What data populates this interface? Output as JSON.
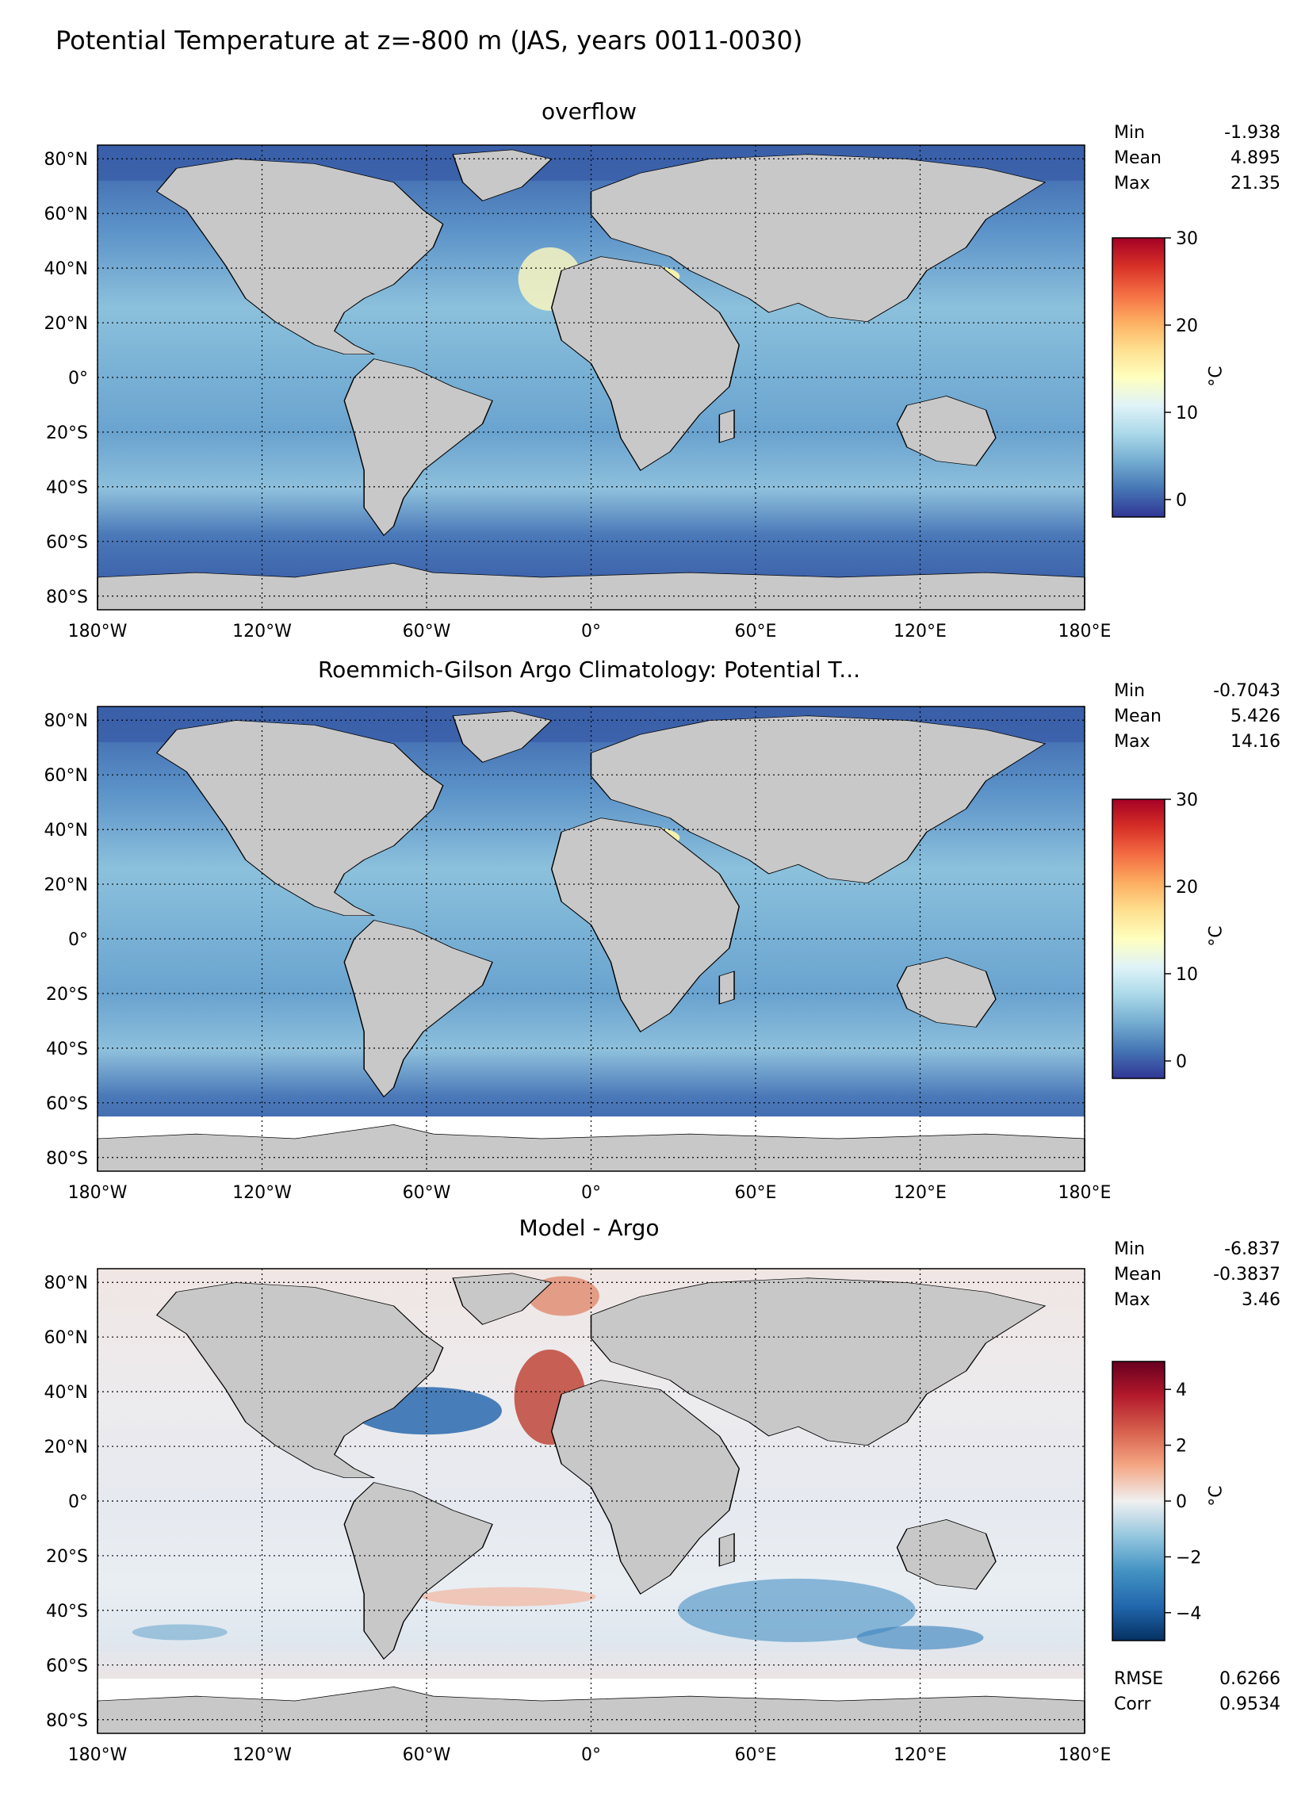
{
  "figure": {
    "title": "Potential Temperature at z=-800 m (JAS, years 0011-0030)"
  },
  "colors": {
    "land": "#c8c8c8",
    "coast": "#000000",
    "background": "#ffffff",
    "gridline": "#000000"
  },
  "chart_data": [
    {
      "type": "heatmap",
      "title": "overflow",
      "xticks": [
        "180°W",
        "120°W",
        "60°W",
        "0°",
        "60°E",
        "120°E",
        "180°E"
      ],
      "yticks": [
        "80°N",
        "60°N",
        "40°N",
        "20°N",
        "0°",
        "20°S",
        "40°S",
        "60°S",
        "80°S"
      ],
      "xlim": [
        -180,
        180
      ],
      "ylim": [
        -85,
        85
      ],
      "grid": true,
      "stats": [
        {
          "label": "Min",
          "value": "-1.938"
        },
        {
          "label": "Mean",
          "value": "4.895"
        },
        {
          "label": "Max",
          "value": "21.35"
        }
      ],
      "colorbar": {
        "label": "°C",
        "vmin": -2,
        "vmax": 30,
        "ticks": [
          "0",
          "10",
          "20",
          "30"
        ],
        "tick_values": [
          0,
          10,
          20,
          30
        ],
        "colormap": "RdYlBu_r"
      }
    },
    {
      "type": "heatmap",
      "title": "Roemmich-Gilson Argo Climatology: Potential T...",
      "xticks": [
        "180°W",
        "120°W",
        "60°W",
        "0°",
        "60°E",
        "120°E",
        "180°E"
      ],
      "yticks": [
        "80°N",
        "60°N",
        "40°N",
        "20°N",
        "0°",
        "20°S",
        "40°S",
        "60°S",
        "80°S"
      ],
      "xlim": [
        -180,
        180
      ],
      "ylim": [
        -85,
        85
      ],
      "grid": true,
      "stats": [
        {
          "label": "Min",
          "value": "-0.7043"
        },
        {
          "label": "Mean",
          "value": "5.426"
        },
        {
          "label": "Max",
          "value": "14.16"
        }
      ],
      "colorbar": {
        "label": "°C",
        "vmin": -2,
        "vmax": 30,
        "ticks": [
          "0",
          "10",
          "20",
          "30"
        ],
        "tick_values": [
          0,
          10,
          20,
          30
        ],
        "colormap": "RdYlBu_r"
      }
    },
    {
      "type": "heatmap",
      "title": "Model - Argo",
      "xticks": [
        "180°W",
        "120°W",
        "60°W",
        "0°",
        "60°E",
        "120°E",
        "180°E"
      ],
      "yticks": [
        "80°N",
        "60°N",
        "40°N",
        "20°N",
        "0°",
        "20°S",
        "40°S",
        "60°S",
        "80°S"
      ],
      "xlim": [
        -180,
        180
      ],
      "ylim": [
        -85,
        85
      ],
      "grid": true,
      "stats": [
        {
          "label": "Min",
          "value": "-6.837"
        },
        {
          "label": "Mean",
          "value": "-0.3837"
        },
        {
          "label": "Max",
          "value": "3.46"
        }
      ],
      "extra_stats": [
        {
          "label": "RMSE",
          "value": "0.6266"
        },
        {
          "label": "Corr",
          "value": "0.9534"
        }
      ],
      "colorbar": {
        "label": "°C",
        "vmin": -5,
        "vmax": 5,
        "ticks": [
          "4",
          "2",
          "0",
          "−2",
          "−4"
        ],
        "tick_values": [
          4,
          2,
          0,
          -2,
          -4
        ],
        "colormap": "RdBu_r"
      }
    }
  ]
}
